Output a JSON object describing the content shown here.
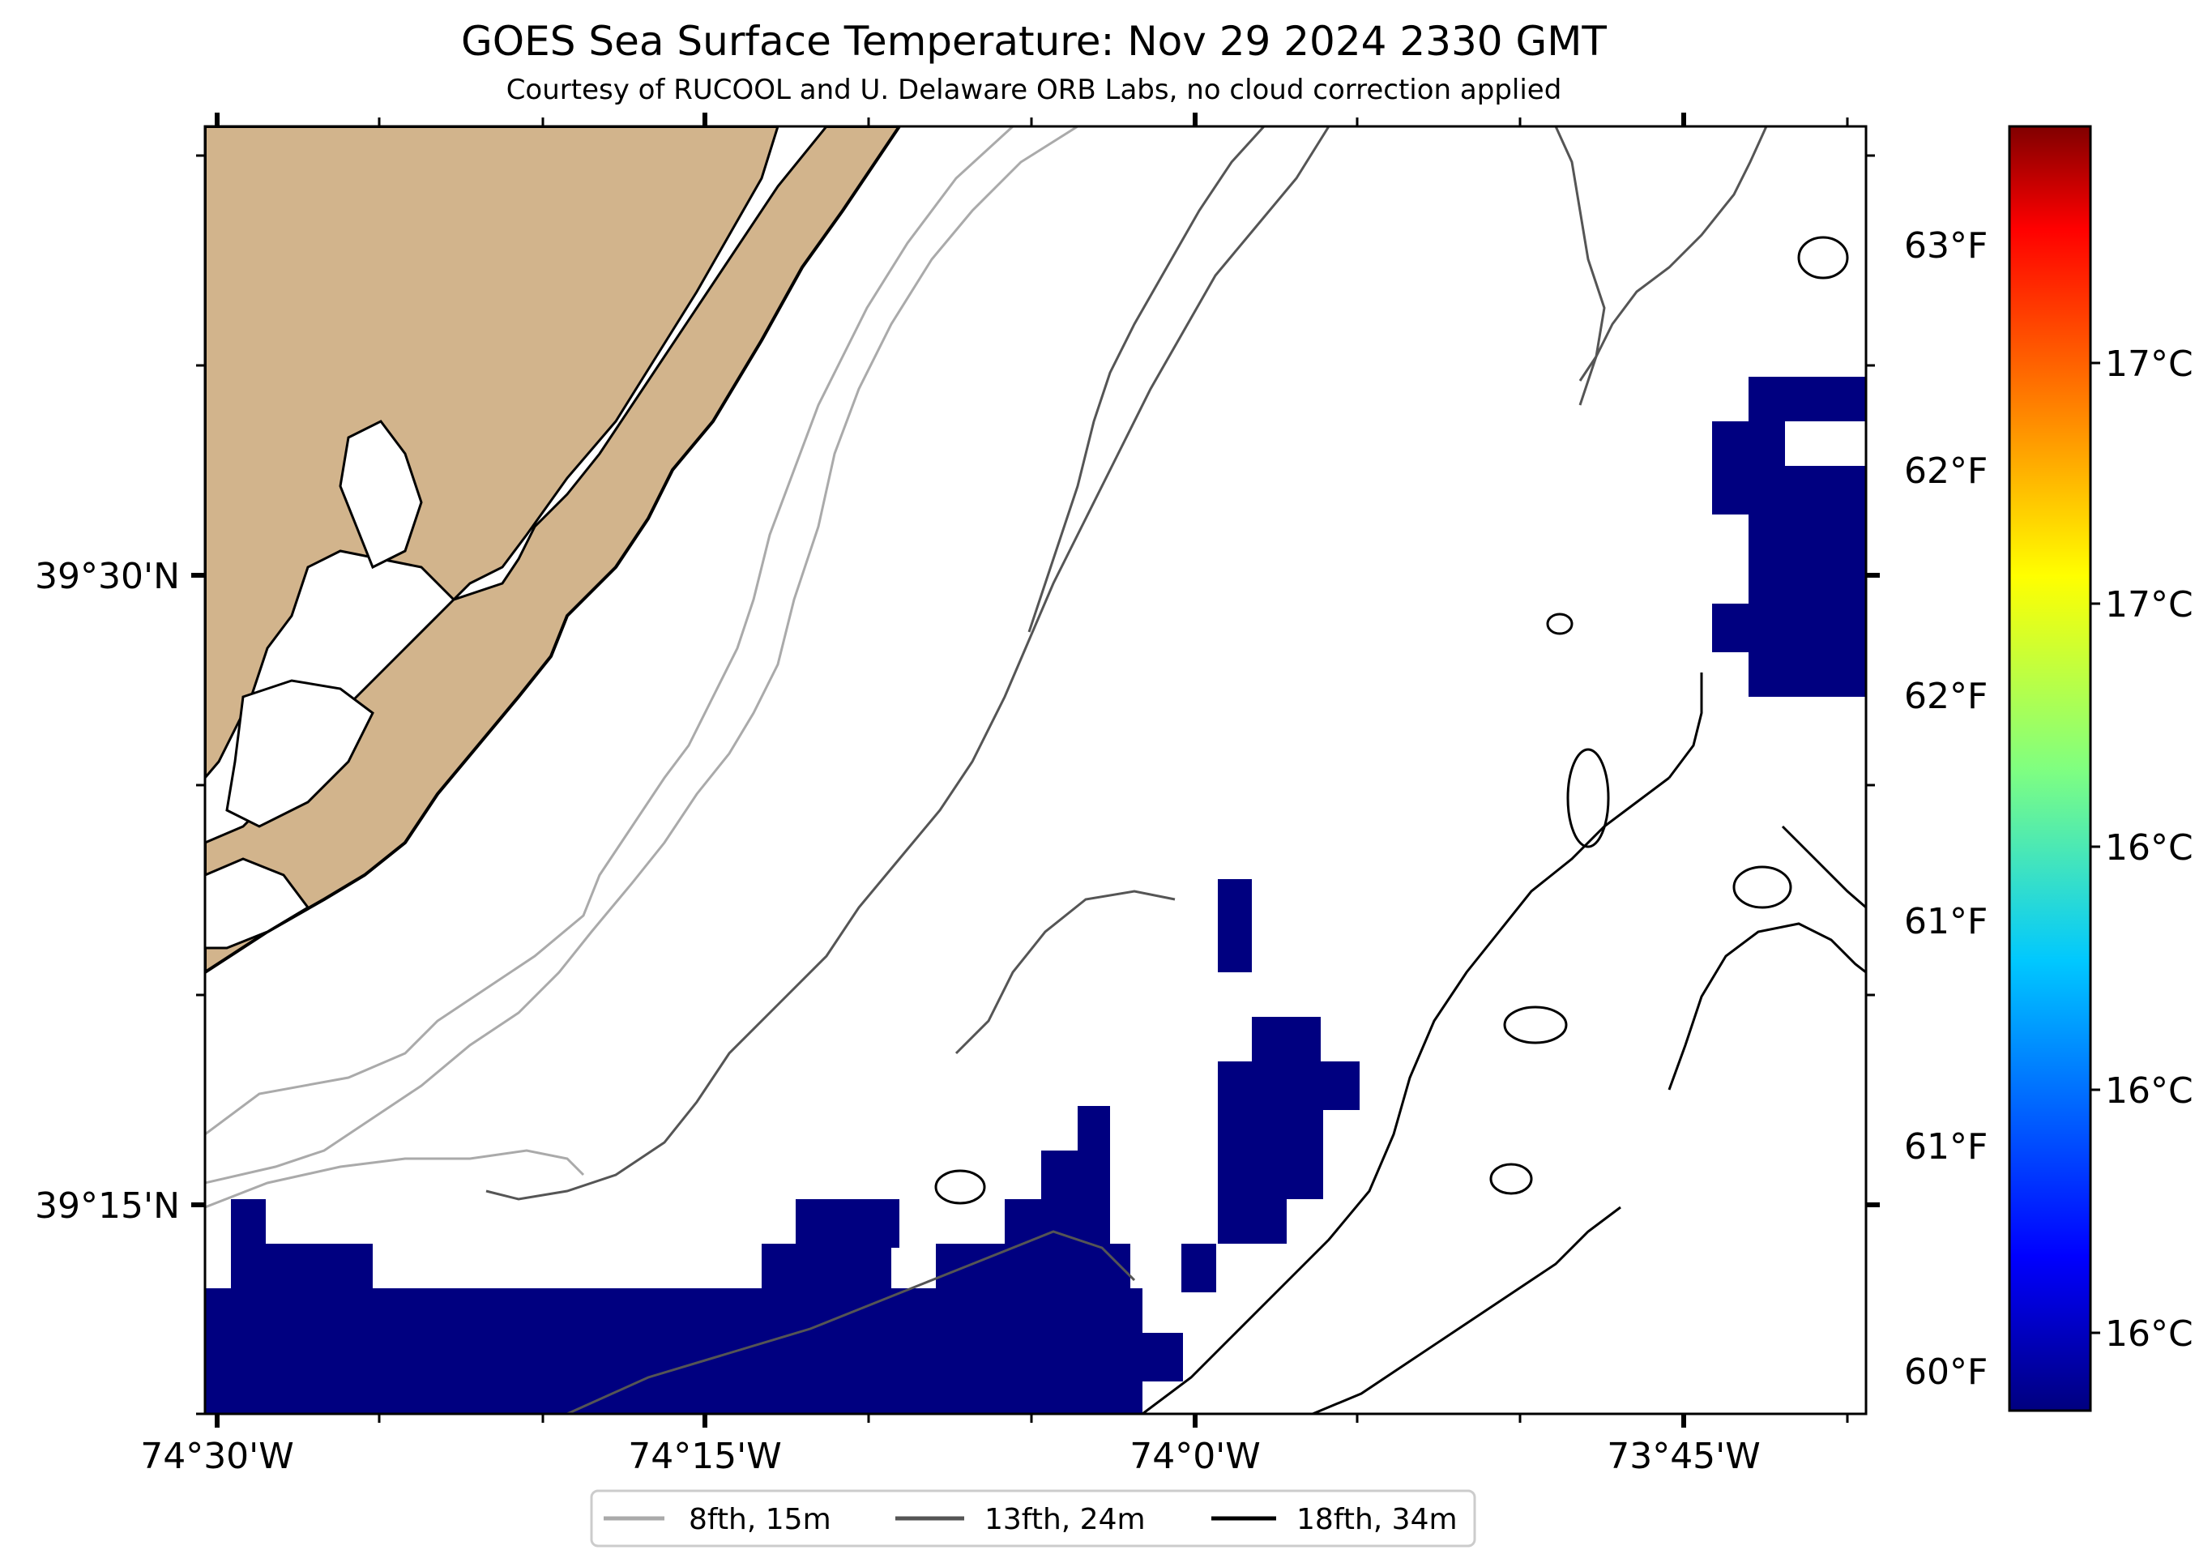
{
  "title": "GOES Sea Surface Temperature: Nov 29 2024 2330 GMT",
  "subtitle": "Courtesy of RUCOOL and U. Delaware ORB Labs, no cloud correction applied",
  "axes": {
    "x_ticks": [
      "74°30'W",
      "74°15'W",
      "74°0'W",
      "73°45'W"
    ],
    "y_ticks": [
      "39°30'N",
      "39°15'N"
    ]
  },
  "right_axis_f": [
    "63°F",
    "62°F",
    "62°F",
    "61°F",
    "61°F",
    "60°F"
  ],
  "colorbar": {
    "labels_c": [
      "17°C",
      "17°C",
      "16°C",
      "16°C",
      "16°C"
    ],
    "colors": [
      "#800000",
      "#ff0000",
      "#ff8000",
      "#ffff00",
      "#80ff80",
      "#00ffff",
      "#0080ff",
      "#0000ff",
      "#00007f"
    ]
  },
  "legend": [
    {
      "label": "8fth, 15m",
      "color": "#aaaaaa"
    },
    {
      "label": "13fth, 24m",
      "color": "#555555"
    },
    {
      "label": "18fth, 34m",
      "color": "#000000"
    }
  ],
  "colors": {
    "land": "#d2b48c",
    "sst_low": "#000080"
  }
}
